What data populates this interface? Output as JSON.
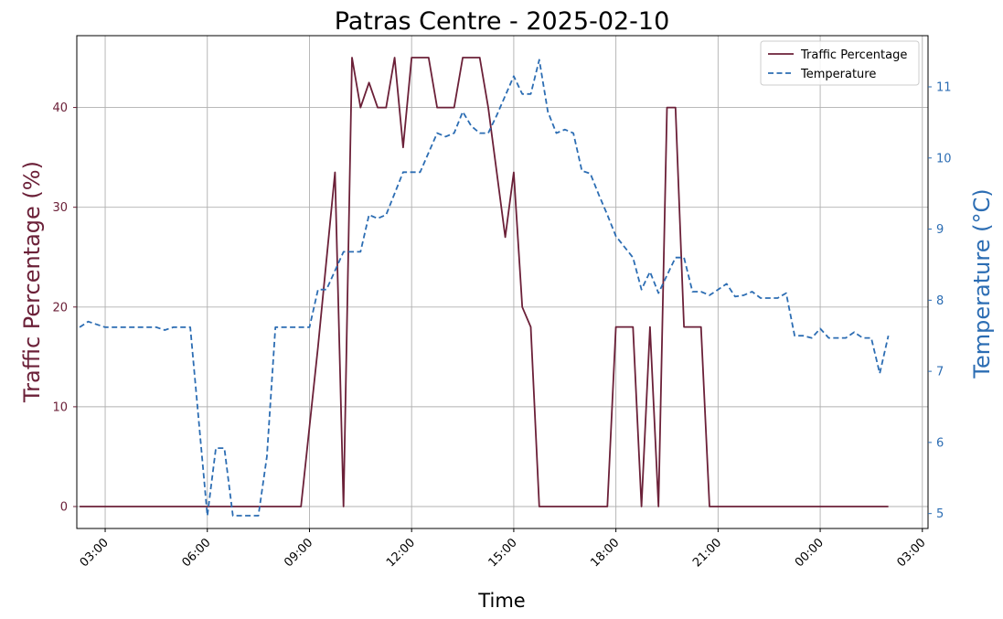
{
  "chart_data": {
    "type": "line",
    "title": "Patras Centre - 2025-02-10",
    "xlabel": "Time",
    "ylabel_left": "Traffic Percentage (%)",
    "ylabel_right": "Temperature (°C)",
    "colors": {
      "traffic": "#6b2038",
      "temperature": "#2c6db3",
      "grid": "#b0b0b0"
    },
    "x_ticks": [
      "03:00",
      "06:00",
      "09:00",
      "12:00",
      "15:00",
      "18:00",
      "21:00",
      "00:00",
      "03:00"
    ],
    "y_left_ticks": [
      "0",
      "10",
      "20",
      "30",
      "40"
    ],
    "y_right_ticks": [
      "5",
      "6",
      "7",
      "8",
      "9",
      "10",
      "11"
    ],
    "ylim_left": [
      -2.2,
      47.2
    ],
    "ylim_right": [
      4.79,
      11.72
    ],
    "x_range": [
      "2025-02-10 02:10",
      "2025-02-11 03:10"
    ],
    "grid": true,
    "legend_position": "top-right",
    "series": [
      {
        "name": "Traffic Percentage",
        "style": "solid",
        "axis": "left",
        "points": [
          [
            "2025-02-10 02:15",
            0
          ],
          [
            "2025-02-10 08:45",
            0
          ],
          [
            "2025-02-10 09:15",
            16
          ],
          [
            "2025-02-10 09:45",
            33.5
          ],
          [
            "2025-02-10 10:00",
            0
          ],
          [
            "2025-02-10 10:15",
            45
          ],
          [
            "2025-02-10 10:30",
            40
          ],
          [
            "2025-02-10 10:45",
            42.5
          ],
          [
            "2025-02-10 11:00",
            40
          ],
          [
            "2025-02-10 11:15",
            40
          ],
          [
            "2025-02-10 11:30",
            45
          ],
          [
            "2025-02-10 11:45",
            36
          ],
          [
            "2025-02-10 12:00",
            45
          ],
          [
            "2025-02-10 12:30",
            45
          ],
          [
            "2025-02-10 12:45",
            40
          ],
          [
            "2025-02-10 13:15",
            40
          ],
          [
            "2025-02-10 13:30",
            45
          ],
          [
            "2025-02-10 14:00",
            45
          ],
          [
            "2025-02-10 14:15",
            40
          ],
          [
            "2025-02-10 14:45",
            27
          ],
          [
            "2025-02-10 15:00",
            33.5
          ],
          [
            "2025-02-10 15:15",
            20
          ],
          [
            "2025-02-10 15:30",
            18
          ],
          [
            "2025-02-10 15:45",
            0
          ],
          [
            "2025-02-10 17:45",
            0
          ],
          [
            "2025-02-10 18:00",
            18
          ],
          [
            "2025-02-10 18:30",
            18
          ],
          [
            "2025-02-10 18:45",
            0
          ],
          [
            "2025-02-10 19:00",
            18
          ],
          [
            "2025-02-10 19:15",
            0
          ],
          [
            "2025-02-10 19:30",
            40
          ],
          [
            "2025-02-10 19:45",
            40
          ],
          [
            "2025-02-10 20:00",
            18
          ],
          [
            "2025-02-10 20:30",
            18
          ],
          [
            "2025-02-10 20:45",
            0
          ],
          [
            "2025-02-11 02:00",
            0
          ]
        ]
      },
      {
        "name": "Temperature",
        "style": "dashed",
        "axis": "right",
        "points": [
          [
            "2025-02-10 02:15",
            7.62
          ],
          [
            "2025-02-10 02:30",
            7.7
          ],
          [
            "2025-02-10 03:00",
            7.62
          ],
          [
            "2025-02-10 04:30",
            7.62
          ],
          [
            "2025-02-10 04:45",
            7.58
          ],
          [
            "2025-02-10 05:00",
            7.62
          ],
          [
            "2025-02-10 05:30",
            7.62
          ],
          [
            "2025-02-10 06:00",
            4.97
          ],
          [
            "2025-02-10 06:15",
            5.92
          ],
          [
            "2025-02-10 06:30",
            5.92
          ],
          [
            "2025-02-10 06:45",
            4.97
          ],
          [
            "2025-02-10 07:30",
            4.97
          ],
          [
            "2025-02-10 07:45",
            5.8
          ],
          [
            "2025-02-10 08:00",
            7.62
          ],
          [
            "2025-02-10 09:00",
            7.62
          ],
          [
            "2025-02-10 09:15",
            8.15
          ],
          [
            "2025-02-10 09:30",
            8.15
          ],
          [
            "2025-02-10 10:00",
            8.68
          ],
          [
            "2025-02-10 10:30",
            8.68
          ],
          [
            "2025-02-10 10:45",
            9.2
          ],
          [
            "2025-02-10 11:00",
            9.15
          ],
          [
            "2025-02-10 11:15",
            9.2
          ],
          [
            "2025-02-10 11:45",
            9.8
          ],
          [
            "2025-02-10 12:15",
            9.8
          ],
          [
            "2025-02-10 12:45",
            10.35
          ],
          [
            "2025-02-10 13:00",
            10.3
          ],
          [
            "2025-02-10 13:15",
            10.35
          ],
          [
            "2025-02-10 13:30",
            10.65
          ],
          [
            "2025-02-10 13:45",
            10.45
          ],
          [
            "2025-02-10 14:00",
            10.35
          ],
          [
            "2025-02-10 14:15",
            10.35
          ],
          [
            "2025-02-10 14:30",
            10.6
          ],
          [
            "2025-02-10 15:00",
            11.15
          ],
          [
            "2025-02-10 15:15",
            10.9
          ],
          [
            "2025-02-10 15:30",
            10.9
          ],
          [
            "2025-02-10 15:45",
            11.38
          ],
          [
            "2025-02-10 16:00",
            10.65
          ],
          [
            "2025-02-10 16:15",
            10.35
          ],
          [
            "2025-02-10 16:30",
            10.4
          ],
          [
            "2025-02-10 16:45",
            10.35
          ],
          [
            "2025-02-10 17:00",
            9.82
          ],
          [
            "2025-02-10 17:15",
            9.78
          ],
          [
            "2025-02-10 17:30",
            9.48
          ],
          [
            "2025-02-10 17:45",
            9.2
          ],
          [
            "2025-02-10 18:00",
            8.9
          ],
          [
            "2025-02-10 18:15",
            8.75
          ],
          [
            "2025-02-10 18:30",
            8.6
          ],
          [
            "2025-02-10 18:45",
            8.15
          ],
          [
            "2025-02-10 19:00",
            8.4
          ],
          [
            "2025-02-10 19:15",
            8.1
          ],
          [
            "2025-02-10 19:30",
            8.35
          ],
          [
            "2025-02-10 19:45",
            8.6
          ],
          [
            "2025-02-10 20:00",
            8.6
          ],
          [
            "2025-02-10 20:15",
            8.12
          ],
          [
            "2025-02-10 20:30",
            8.12
          ],
          [
            "2025-02-10 20:45",
            8.07
          ],
          [
            "2025-02-10 21:00",
            8.15
          ],
          [
            "2025-02-10 21:15",
            8.23
          ],
          [
            "2025-02-10 21:30",
            8.05
          ],
          [
            "2025-02-10 21:45",
            8.07
          ],
          [
            "2025-02-10 22:00",
            8.12
          ],
          [
            "2025-02-10 22:15",
            8.03
          ],
          [
            "2025-02-10 22:45",
            8.03
          ],
          [
            "2025-02-10 23:00",
            8.1
          ],
          [
            "2025-02-10 23:15",
            7.5
          ],
          [
            "2025-02-10 23:30",
            7.5
          ],
          [
            "2025-02-10 23:45",
            7.47
          ],
          [
            "2025-02-11 00:00",
            7.6
          ],
          [
            "2025-02-11 00:15",
            7.47
          ],
          [
            "2025-02-11 00:45",
            7.47
          ],
          [
            "2025-02-11 01:00",
            7.55
          ],
          [
            "2025-02-11 01:15",
            7.47
          ],
          [
            "2025-02-11 01:30",
            7.47
          ],
          [
            "2025-02-11 01:45",
            6.97
          ],
          [
            "2025-02-11 02:00",
            7.5
          ]
        ]
      }
    ]
  }
}
